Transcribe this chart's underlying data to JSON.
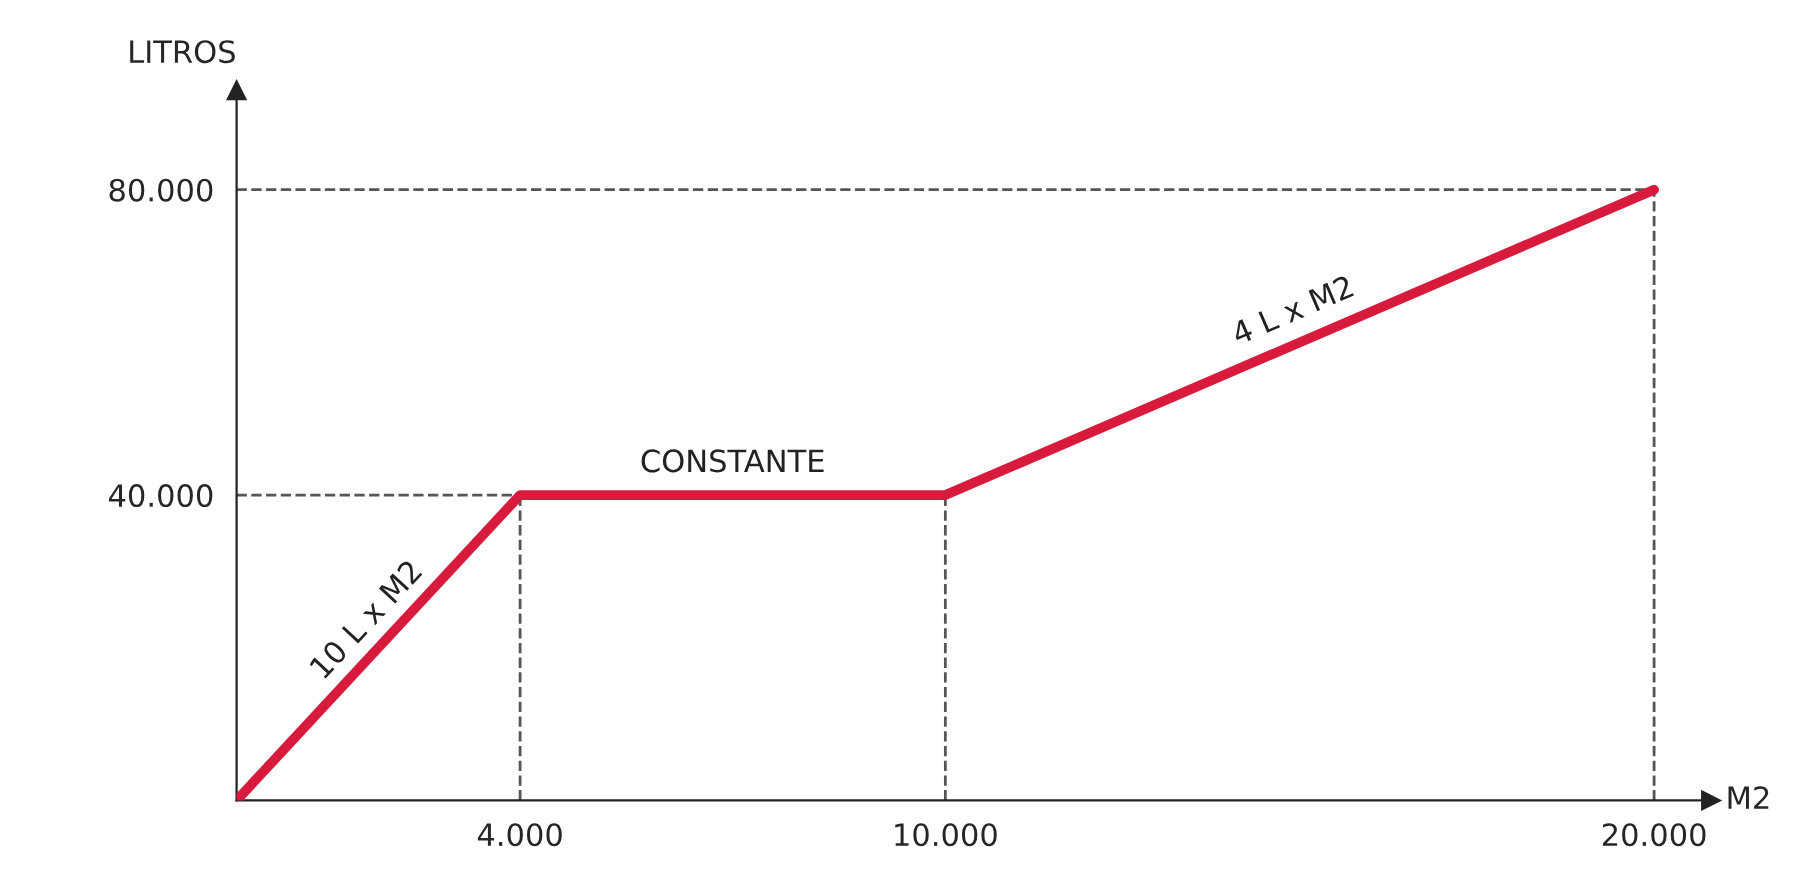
{
  "chart_data": {
    "type": "line",
    "xlabel": "M2",
    "ylabel": "LITROS",
    "series": [
      {
        "color": "#d81b3c",
        "x": [
          0,
          4000,
          10000,
          20000
        ],
        "values": [
          0,
          40000,
          40000,
          80000
        ]
      }
    ],
    "xlim": [
      0,
      20800
    ],
    "ylim": [
      0,
      93000
    ],
    "xticks": [
      {
        "value": 4000,
        "label": "4.000"
      },
      {
        "value": 10000,
        "label": "10.000"
      },
      {
        "value": 20000,
        "label": "20.000"
      }
    ],
    "yticks": [
      {
        "value": 40000,
        "label": "40.000"
      },
      {
        "value": 80000,
        "label": "80.000"
      }
    ],
    "ref_lines": [
      {
        "axis": "x",
        "value": 4000,
        "line_style": "dashed",
        "color": "#555555"
      },
      {
        "axis": "x",
        "value": 10000,
        "line_style": "dashed",
        "color": "#555555"
      },
      {
        "axis": "x",
        "value": 20000,
        "line_style": "dashed",
        "color": "#555555"
      },
      {
        "axis": "y",
        "value": 40000,
        "line_style": "dashed",
        "color": "#555555"
      },
      {
        "axis": "y",
        "value": 80000,
        "line_style": "dashed",
        "color": "#555555"
      }
    ],
    "annotations": [
      {
        "text": "10 L x M2",
        "x": 2000,
        "y": 20000
      },
      {
        "text": "CONSTANTE",
        "x": 7000,
        "y": 40000
      },
      {
        "text": "4 L x M2",
        "x": 15000,
        "y": 60000
      }
    ],
    "grid": false,
    "legend": false,
    "marker": "none",
    "line_style": "solid"
  }
}
